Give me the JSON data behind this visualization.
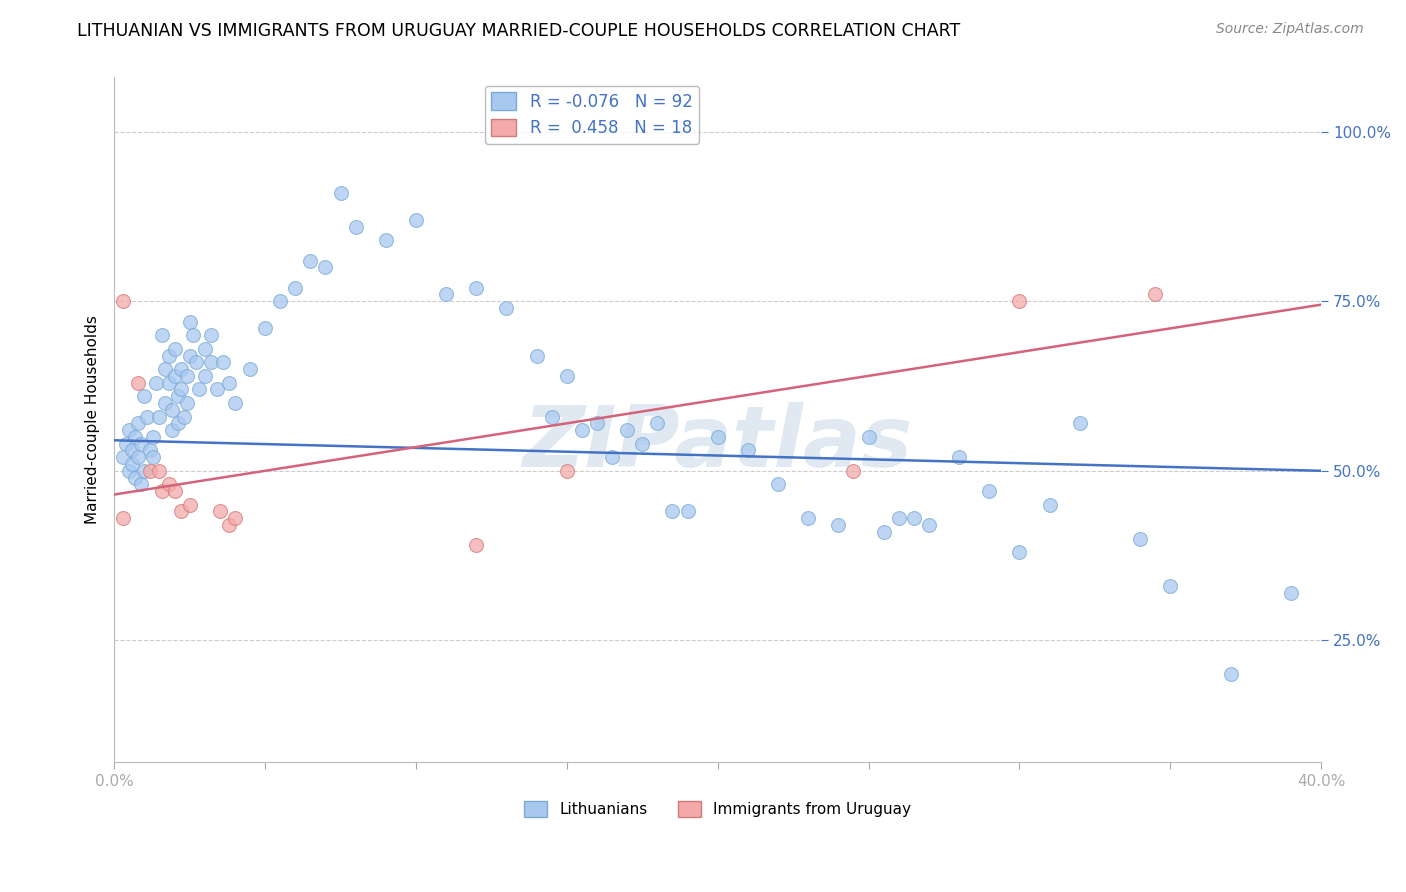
{
  "title": "LITHUANIAN VS IMMIGRANTS FROM URUGUAY MARRIED-COUPLE HOUSEHOLDS CORRELATION CHART",
  "source": "Source: ZipAtlas.com",
  "ylabel": "Married-couple Households",
  "ytick_labels": [
    "100.0%",
    "75.0%",
    "50.0%",
    "25.0%"
  ],
  "ytick_values": [
    1.0,
    0.75,
    0.5,
    0.25
  ],
  "xlim": [
    0.0,
    0.4
  ],
  "ylim": [
    0.07,
    1.08
  ],
  "legend_entries": [
    {
      "label": "R = -0.076   N = 92",
      "color": "#a8c8f0"
    },
    {
      "label": "R =  0.458   N = 18",
      "color": "#f4aaaa"
    }
  ],
  "blue_scatter": [
    [
      0.003,
      0.52
    ],
    [
      0.004,
      0.54
    ],
    [
      0.005,
      0.56
    ],
    [
      0.005,
      0.5
    ],
    [
      0.006,
      0.53
    ],
    [
      0.006,
      0.51
    ],
    [
      0.007,
      0.55
    ],
    [
      0.007,
      0.49
    ],
    [
      0.008,
      0.57
    ],
    [
      0.008,
      0.52
    ],
    [
      0.009,
      0.54
    ],
    [
      0.009,
      0.48
    ],
    [
      0.01,
      0.61
    ],
    [
      0.01,
      0.5
    ],
    [
      0.011,
      0.58
    ],
    [
      0.012,
      0.53
    ],
    [
      0.013,
      0.55
    ],
    [
      0.013,
      0.52
    ],
    [
      0.014,
      0.63
    ],
    [
      0.015,
      0.58
    ],
    [
      0.016,
      0.7
    ],
    [
      0.017,
      0.65
    ],
    [
      0.017,
      0.6
    ],
    [
      0.018,
      0.67
    ],
    [
      0.018,
      0.63
    ],
    [
      0.019,
      0.59
    ],
    [
      0.019,
      0.56
    ],
    [
      0.02,
      0.68
    ],
    [
      0.02,
      0.64
    ],
    [
      0.021,
      0.61
    ],
    [
      0.021,
      0.57
    ],
    [
      0.022,
      0.65
    ],
    [
      0.022,
      0.62
    ],
    [
      0.023,
      0.58
    ],
    [
      0.024,
      0.64
    ],
    [
      0.024,
      0.6
    ],
    [
      0.025,
      0.72
    ],
    [
      0.025,
      0.67
    ],
    [
      0.026,
      0.7
    ],
    [
      0.027,
      0.66
    ],
    [
      0.028,
      0.62
    ],
    [
      0.03,
      0.68
    ],
    [
      0.03,
      0.64
    ],
    [
      0.032,
      0.7
    ],
    [
      0.032,
      0.66
    ],
    [
      0.034,
      0.62
    ],
    [
      0.036,
      0.66
    ],
    [
      0.038,
      0.63
    ],
    [
      0.04,
      0.6
    ],
    [
      0.045,
      0.65
    ],
    [
      0.05,
      0.71
    ],
    [
      0.055,
      0.75
    ],
    [
      0.06,
      0.77
    ],
    [
      0.065,
      0.81
    ],
    [
      0.07,
      0.8
    ],
    [
      0.075,
      0.91
    ],
    [
      0.08,
      0.86
    ],
    [
      0.09,
      0.84
    ],
    [
      0.1,
      0.87
    ],
    [
      0.11,
      0.76
    ],
    [
      0.12,
      0.77
    ],
    [
      0.13,
      0.74
    ],
    [
      0.14,
      0.67
    ],
    [
      0.145,
      0.58
    ],
    [
      0.15,
      0.64
    ],
    [
      0.155,
      0.56
    ],
    [
      0.16,
      0.57
    ],
    [
      0.165,
      0.52
    ],
    [
      0.17,
      0.56
    ],
    [
      0.175,
      0.54
    ],
    [
      0.18,
      0.57
    ],
    [
      0.185,
      0.44
    ],
    [
      0.19,
      0.44
    ],
    [
      0.2,
      0.55
    ],
    [
      0.21,
      0.53
    ],
    [
      0.22,
      0.48
    ],
    [
      0.23,
      0.43
    ],
    [
      0.24,
      0.42
    ],
    [
      0.25,
      0.55
    ],
    [
      0.255,
      0.41
    ],
    [
      0.26,
      0.43
    ],
    [
      0.265,
      0.43
    ],
    [
      0.27,
      0.42
    ],
    [
      0.28,
      0.52
    ],
    [
      0.29,
      0.47
    ],
    [
      0.3,
      0.38
    ],
    [
      0.31,
      0.45
    ],
    [
      0.32,
      0.57
    ],
    [
      0.34,
      0.4
    ],
    [
      0.35,
      0.33
    ],
    [
      0.37,
      0.2
    ],
    [
      0.39,
      0.32
    ]
  ],
  "pink_scatter": [
    [
      0.003,
      0.75
    ],
    [
      0.008,
      0.63
    ],
    [
      0.012,
      0.5
    ],
    [
      0.015,
      0.5
    ],
    [
      0.016,
      0.47
    ],
    [
      0.018,
      0.48
    ],
    [
      0.02,
      0.47
    ],
    [
      0.022,
      0.44
    ],
    [
      0.025,
      0.45
    ],
    [
      0.035,
      0.44
    ],
    [
      0.038,
      0.42
    ],
    [
      0.04,
      0.43
    ],
    [
      0.12,
      0.39
    ],
    [
      0.15,
      0.5
    ],
    [
      0.245,
      0.5
    ],
    [
      0.3,
      0.75
    ],
    [
      0.345,
      0.76
    ],
    [
      0.003,
      0.43
    ]
  ],
  "blue_line_x": [
    0.0,
    0.4
  ],
  "blue_line_y": [
    0.545,
    0.5
  ],
  "pink_line_x": [
    0.0,
    0.4
  ],
  "pink_line_y": [
    0.465,
    0.745
  ],
  "blue_color": "#a8c8f0",
  "blue_edge_color": "#7aaad4",
  "pink_color": "#f4aaaa",
  "pink_edge_color": "#d47878",
  "blue_line_color": "#4472c4",
  "pink_line_color": "#d4637a",
  "marker_size": 100,
  "alpha": 0.75,
  "title_fontsize": 12.5,
  "source_fontsize": 10,
  "axis_label_fontsize": 11,
  "tick_fontsize": 11,
  "ytick_color": "#4472c4",
  "xtick_color": "#4472c4",
  "background_color": "#ffffff",
  "grid_color": "#cccccc",
  "xtick_positions": [
    0.0,
    0.05,
    0.1,
    0.15,
    0.2,
    0.25,
    0.3,
    0.35,
    0.4
  ],
  "xtick_minor": [
    0.025,
    0.075,
    0.125,
    0.175,
    0.225,
    0.275,
    0.325,
    0.375
  ]
}
